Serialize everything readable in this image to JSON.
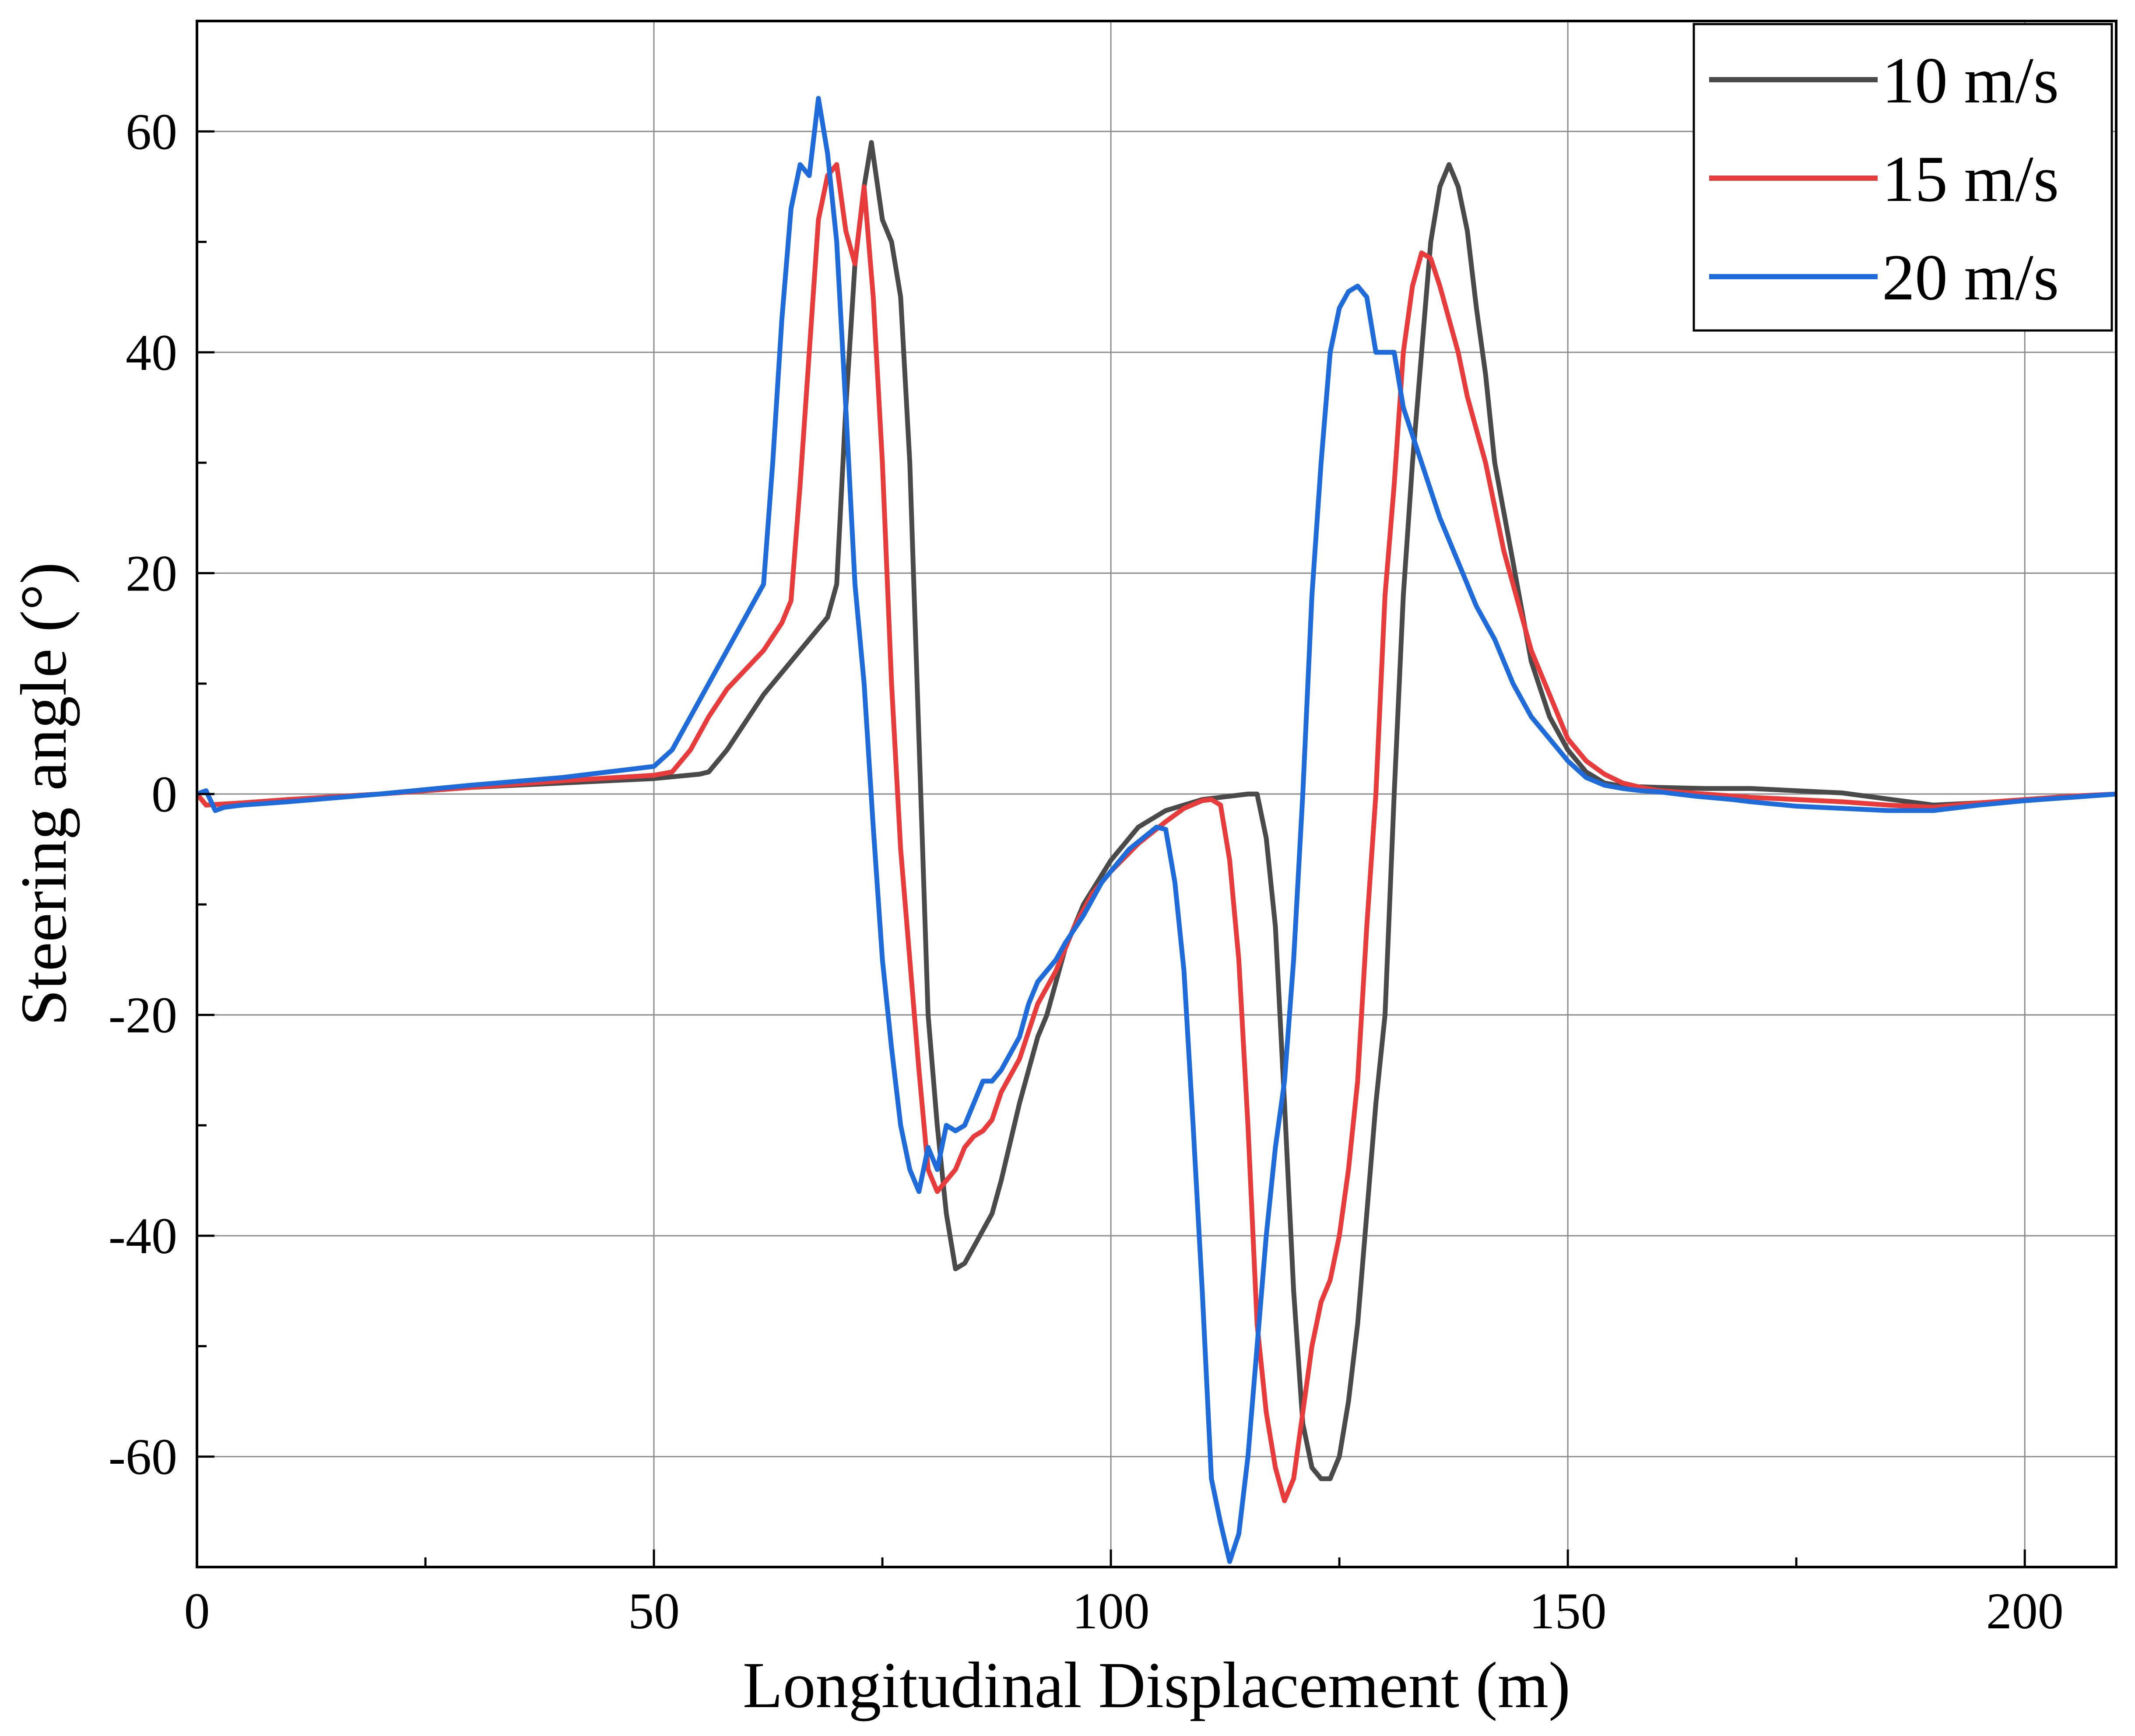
{
  "chart_data": {
    "type": "line",
    "title": "",
    "xlabel": "Longitudinal Displacement (m)",
    "ylabel": "Steering angle (°)",
    "xlim": [
      0,
      210
    ],
    "ylim": [
      -70,
      70
    ],
    "xticks": [
      0,
      50,
      100,
      150,
      200
    ],
    "yticks": [
      -60,
      -40,
      -20,
      0,
      20,
      40,
      60
    ],
    "xtick_labels": [
      "0",
      "50",
      "100",
      "150",
      "200"
    ],
    "ytick_labels": [
      "-60",
      "-40",
      "-20",
      "0",
      "20",
      "40",
      "60"
    ],
    "grid": true,
    "legend_position": "top-right",
    "series": [
      {
        "name": "10 m/s",
        "color": "#4a4a4a",
        "points": [
          [
            0,
            0
          ],
          [
            1,
            -1
          ],
          [
            5,
            -0.8
          ],
          [
            10,
            -0.5
          ],
          [
            20,
            0
          ],
          [
            30,
            0.6
          ],
          [
            40,
            1
          ],
          [
            50,
            1.4
          ],
          [
            55,
            1.8
          ],
          [
            56,
            2
          ],
          [
            58,
            4
          ],
          [
            62,
            9
          ],
          [
            64,
            11
          ],
          [
            66,
            13
          ],
          [
            68,
            15
          ],
          [
            69,
            16
          ],
          [
            70,
            19
          ],
          [
            71,
            35
          ],
          [
            72,
            48
          ],
          [
            73,
            55
          ],
          [
            73.8,
            59
          ],
          [
            75,
            52
          ],
          [
            76,
            50
          ],
          [
            77,
            45
          ],
          [
            78,
            30
          ],
          [
            79,
            5
          ],
          [
            80,
            -20
          ],
          [
            81,
            -30
          ],
          [
            82,
            -38
          ],
          [
            83,
            -43
          ],
          [
            84,
            -42.5
          ],
          [
            85,
            -41
          ],
          [
            87,
            -38
          ],
          [
            88,
            -35
          ],
          [
            90,
            -28
          ],
          [
            92,
            -22
          ],
          [
            93,
            -20
          ],
          [
            94,
            -17
          ],
          [
            95,
            -14
          ],
          [
            97,
            -10
          ],
          [
            100,
            -6
          ],
          [
            103,
            -3
          ],
          [
            106,
            -1.5
          ],
          [
            108,
            -1
          ],
          [
            110,
            -0.5
          ],
          [
            113,
            -0.2
          ],
          [
            115,
            0
          ],
          [
            116,
            0
          ],
          [
            117,
            -4
          ],
          [
            118,
            -12
          ],
          [
            119,
            -28
          ],
          [
            120,
            -45
          ],
          [
            121,
            -57
          ],
          [
            122,
            -61
          ],
          [
            123,
            -62
          ],
          [
            124,
            -62
          ],
          [
            125,
            -60
          ],
          [
            126,
            -55
          ],
          [
            127,
            -48
          ],
          [
            128,
            -38
          ],
          [
            129,
            -28
          ],
          [
            130,
            -20
          ],
          [
            131,
            0
          ],
          [
            132,
            18
          ],
          [
            133,
            30
          ],
          [
            134,
            40
          ],
          [
            135,
            50
          ],
          [
            136,
            55
          ],
          [
            137,
            57
          ],
          [
            138,
            55
          ],
          [
            139,
            51
          ],
          [
            140,
            44
          ],
          [
            141,
            38
          ],
          [
            142,
            30
          ],
          [
            144,
            21
          ],
          [
            146,
            12
          ],
          [
            148,
            7
          ],
          [
            150,
            4
          ],
          [
            152,
            2
          ],
          [
            154,
            1
          ],
          [
            156,
            0.7
          ],
          [
            160,
            0.6
          ],
          [
            165,
            0.5
          ],
          [
            170,
            0.5
          ],
          [
            180,
            0.1
          ],
          [
            190,
            -1
          ],
          [
            195,
            -0.8
          ],
          [
            200,
            -0.6
          ],
          [
            205,
            -0.3
          ],
          [
            210,
            0
          ]
        ]
      },
      {
        "name": "15 m/s",
        "color": "#e83c3c",
        "points": [
          [
            0,
            0
          ],
          [
            1,
            -1
          ],
          [
            5,
            -0.8
          ],
          [
            10,
            -0.5
          ],
          [
            20,
            0
          ],
          [
            30,
            0.6
          ],
          [
            40,
            1.2
          ],
          [
            50,
            1.7
          ],
          [
            52,
            2
          ],
          [
            54,
            4
          ],
          [
            56,
            7
          ],
          [
            58,
            9.5
          ],
          [
            62,
            13
          ],
          [
            64,
            15.5
          ],
          [
            65,
            17.5
          ],
          [
            66,
            28
          ],
          [
            67,
            40
          ],
          [
            68,
            52
          ],
          [
            69,
            56
          ],
          [
            70,
            57
          ],
          [
            71,
            51
          ],
          [
            72,
            48
          ],
          [
            73,
            55
          ],
          [
            74,
            45
          ],
          [
            75,
            30
          ],
          [
            76,
            10
          ],
          [
            77,
            -5
          ],
          [
            78,
            -15
          ],
          [
            79,
            -25
          ],
          [
            80,
            -34
          ],
          [
            81,
            -36
          ],
          [
            82,
            -35
          ],
          [
            83,
            -34
          ],
          [
            84,
            -32
          ],
          [
            85,
            -31
          ],
          [
            86,
            -30.5
          ],
          [
            87,
            -29.5
          ],
          [
            88,
            -27
          ],
          [
            90,
            -24
          ],
          [
            92,
            -19
          ],
          [
            94,
            -16
          ],
          [
            96,
            -12
          ],
          [
            98,
            -9
          ],
          [
            100,
            -7
          ],
          [
            103,
            -4.5
          ],
          [
            106,
            -2.5
          ],
          [
            108,
            -1.3
          ],
          [
            110,
            -0.6
          ],
          [
            111,
            -0.5
          ],
          [
            112,
            -1
          ],
          [
            113,
            -6
          ],
          [
            114,
            -15
          ],
          [
            115,
            -30
          ],
          [
            116,
            -48
          ],
          [
            117,
            -56
          ],
          [
            118,
            -61
          ],
          [
            119,
            -64
          ],
          [
            120,
            -62
          ],
          [
            121,
            -56
          ],
          [
            122,
            -50
          ],
          [
            123,
            -46
          ],
          [
            124,
            -44
          ],
          [
            125,
            -40
          ],
          [
            126,
            -34
          ],
          [
            127,
            -26
          ],
          [
            128,
            -12
          ],
          [
            129,
            0
          ],
          [
            130,
            18
          ],
          [
            131,
            28
          ],
          [
            132,
            40
          ],
          [
            133,
            46
          ],
          [
            134,
            49
          ],
          [
            135,
            48.5
          ],
          [
            136,
            46
          ],
          [
            137,
            43
          ],
          [
            138,
            40
          ],
          [
            139,
            36
          ],
          [
            140,
            33
          ],
          [
            141,
            30
          ],
          [
            142,
            26
          ],
          [
            143,
            22
          ],
          [
            144,
            19
          ],
          [
            145,
            16
          ],
          [
            146,
            13
          ],
          [
            148,
            9
          ],
          [
            150,
            5
          ],
          [
            152,
            3
          ],
          [
            154,
            1.8
          ],
          [
            156,
            1
          ],
          [
            158,
            0.6
          ],
          [
            160,
            0.3
          ],
          [
            165,
            0
          ],
          [
            170,
            -0.3
          ],
          [
            175,
            -0.5
          ],
          [
            180,
            -0.7
          ],
          [
            185,
            -1
          ],
          [
            190,
            -1.2
          ],
          [
            195,
            -0.8
          ],
          [
            200,
            -0.5
          ],
          [
            205,
            -0.2
          ],
          [
            210,
            0
          ]
        ]
      },
      {
        "name": "20 m/s",
        "color": "#1e6bd9",
        "points": [
          [
            0,
            0
          ],
          [
            1,
            0.3
          ],
          [
            2,
            -1.5
          ],
          [
            3,
            -1.2
          ],
          [
            5,
            -1
          ],
          [
            10,
            -0.7
          ],
          [
            20,
            0
          ],
          [
            30,
            0.8
          ],
          [
            40,
            1.5
          ],
          [
            45,
            2
          ],
          [
            50,
            2.5
          ],
          [
            52,
            4
          ],
          [
            54,
            7
          ],
          [
            56,
            10
          ],
          [
            58,
            13
          ],
          [
            60,
            16
          ],
          [
            62,
            19
          ],
          [
            63,
            30
          ],
          [
            64,
            43
          ],
          [
            65,
            53
          ],
          [
            66,
            57
          ],
          [
            67,
            56
          ],
          [
            68,
            63
          ],
          [
            69,
            58
          ],
          [
            70,
            50
          ],
          [
            71,
            35
          ],
          [
            72,
            19
          ],
          [
            73,
            10
          ],
          [
            74,
            -3
          ],
          [
            75,
            -15
          ],
          [
            76,
            -23
          ],
          [
            77,
            -30
          ],
          [
            78,
            -34
          ],
          [
            79,
            -36
          ],
          [
            80,
            -32
          ],
          [
            81,
            -34
          ],
          [
            82,
            -30
          ],
          [
            83,
            -30.5
          ],
          [
            84,
            -30
          ],
          [
            86,
            -26
          ],
          [
            87,
            -26
          ],
          [
            88,
            -25
          ],
          [
            90,
            -22
          ],
          [
            91,
            -19
          ],
          [
            92,
            -17
          ],
          [
            94,
            -15
          ],
          [
            95,
            -13.5
          ],
          [
            97,
            -11
          ],
          [
            99,
            -8
          ],
          [
            102,
            -5
          ],
          [
            105,
            -3
          ],
          [
            106,
            -3.2
          ],
          [
            107,
            -8
          ],
          [
            108,
            -16
          ],
          [
            109,
            -30
          ],
          [
            110,
            -45
          ],
          [
            111,
            -62
          ],
          [
            112,
            -66
          ],
          [
            113,
            -69.5
          ],
          [
            114,
            -67
          ],
          [
            115,
            -60
          ],
          [
            116,
            -50
          ],
          [
            117,
            -40
          ],
          [
            118,
            -32
          ],
          [
            119,
            -26
          ],
          [
            120,
            -15
          ],
          [
            121,
            0
          ],
          [
            122,
            18
          ],
          [
            123,
            30
          ],
          [
            124,
            40
          ],
          [
            125,
            44
          ],
          [
            126,
            45.5
          ],
          [
            127,
            46
          ],
          [
            128,
            45
          ],
          [
            129,
            40
          ],
          [
            130,
            40
          ],
          [
            131,
            40
          ],
          [
            132,
            35
          ],
          [
            134,
            30
          ],
          [
            136,
            25
          ],
          [
            138,
            21
          ],
          [
            140,
            17
          ],
          [
            142,
            14
          ],
          [
            144,
            10
          ],
          [
            146,
            7
          ],
          [
            148,
            5
          ],
          [
            150,
            3
          ],
          [
            152,
            1.5
          ],
          [
            154,
            0.8
          ],
          [
            156,
            0.5
          ],
          [
            158,
            0.3
          ],
          [
            160,
            0.2
          ],
          [
            164,
            -0.2
          ],
          [
            168,
            -0.5
          ],
          [
            170,
            -0.7
          ],
          [
            175,
            -1.1
          ],
          [
            180,
            -1.3
          ],
          [
            185,
            -1.5
          ],
          [
            190,
            -1.5
          ],
          [
            195,
            -1
          ],
          [
            200,
            -0.6
          ],
          [
            205,
            -0.3
          ],
          [
            210,
            0
          ]
        ]
      }
    ]
  }
}
